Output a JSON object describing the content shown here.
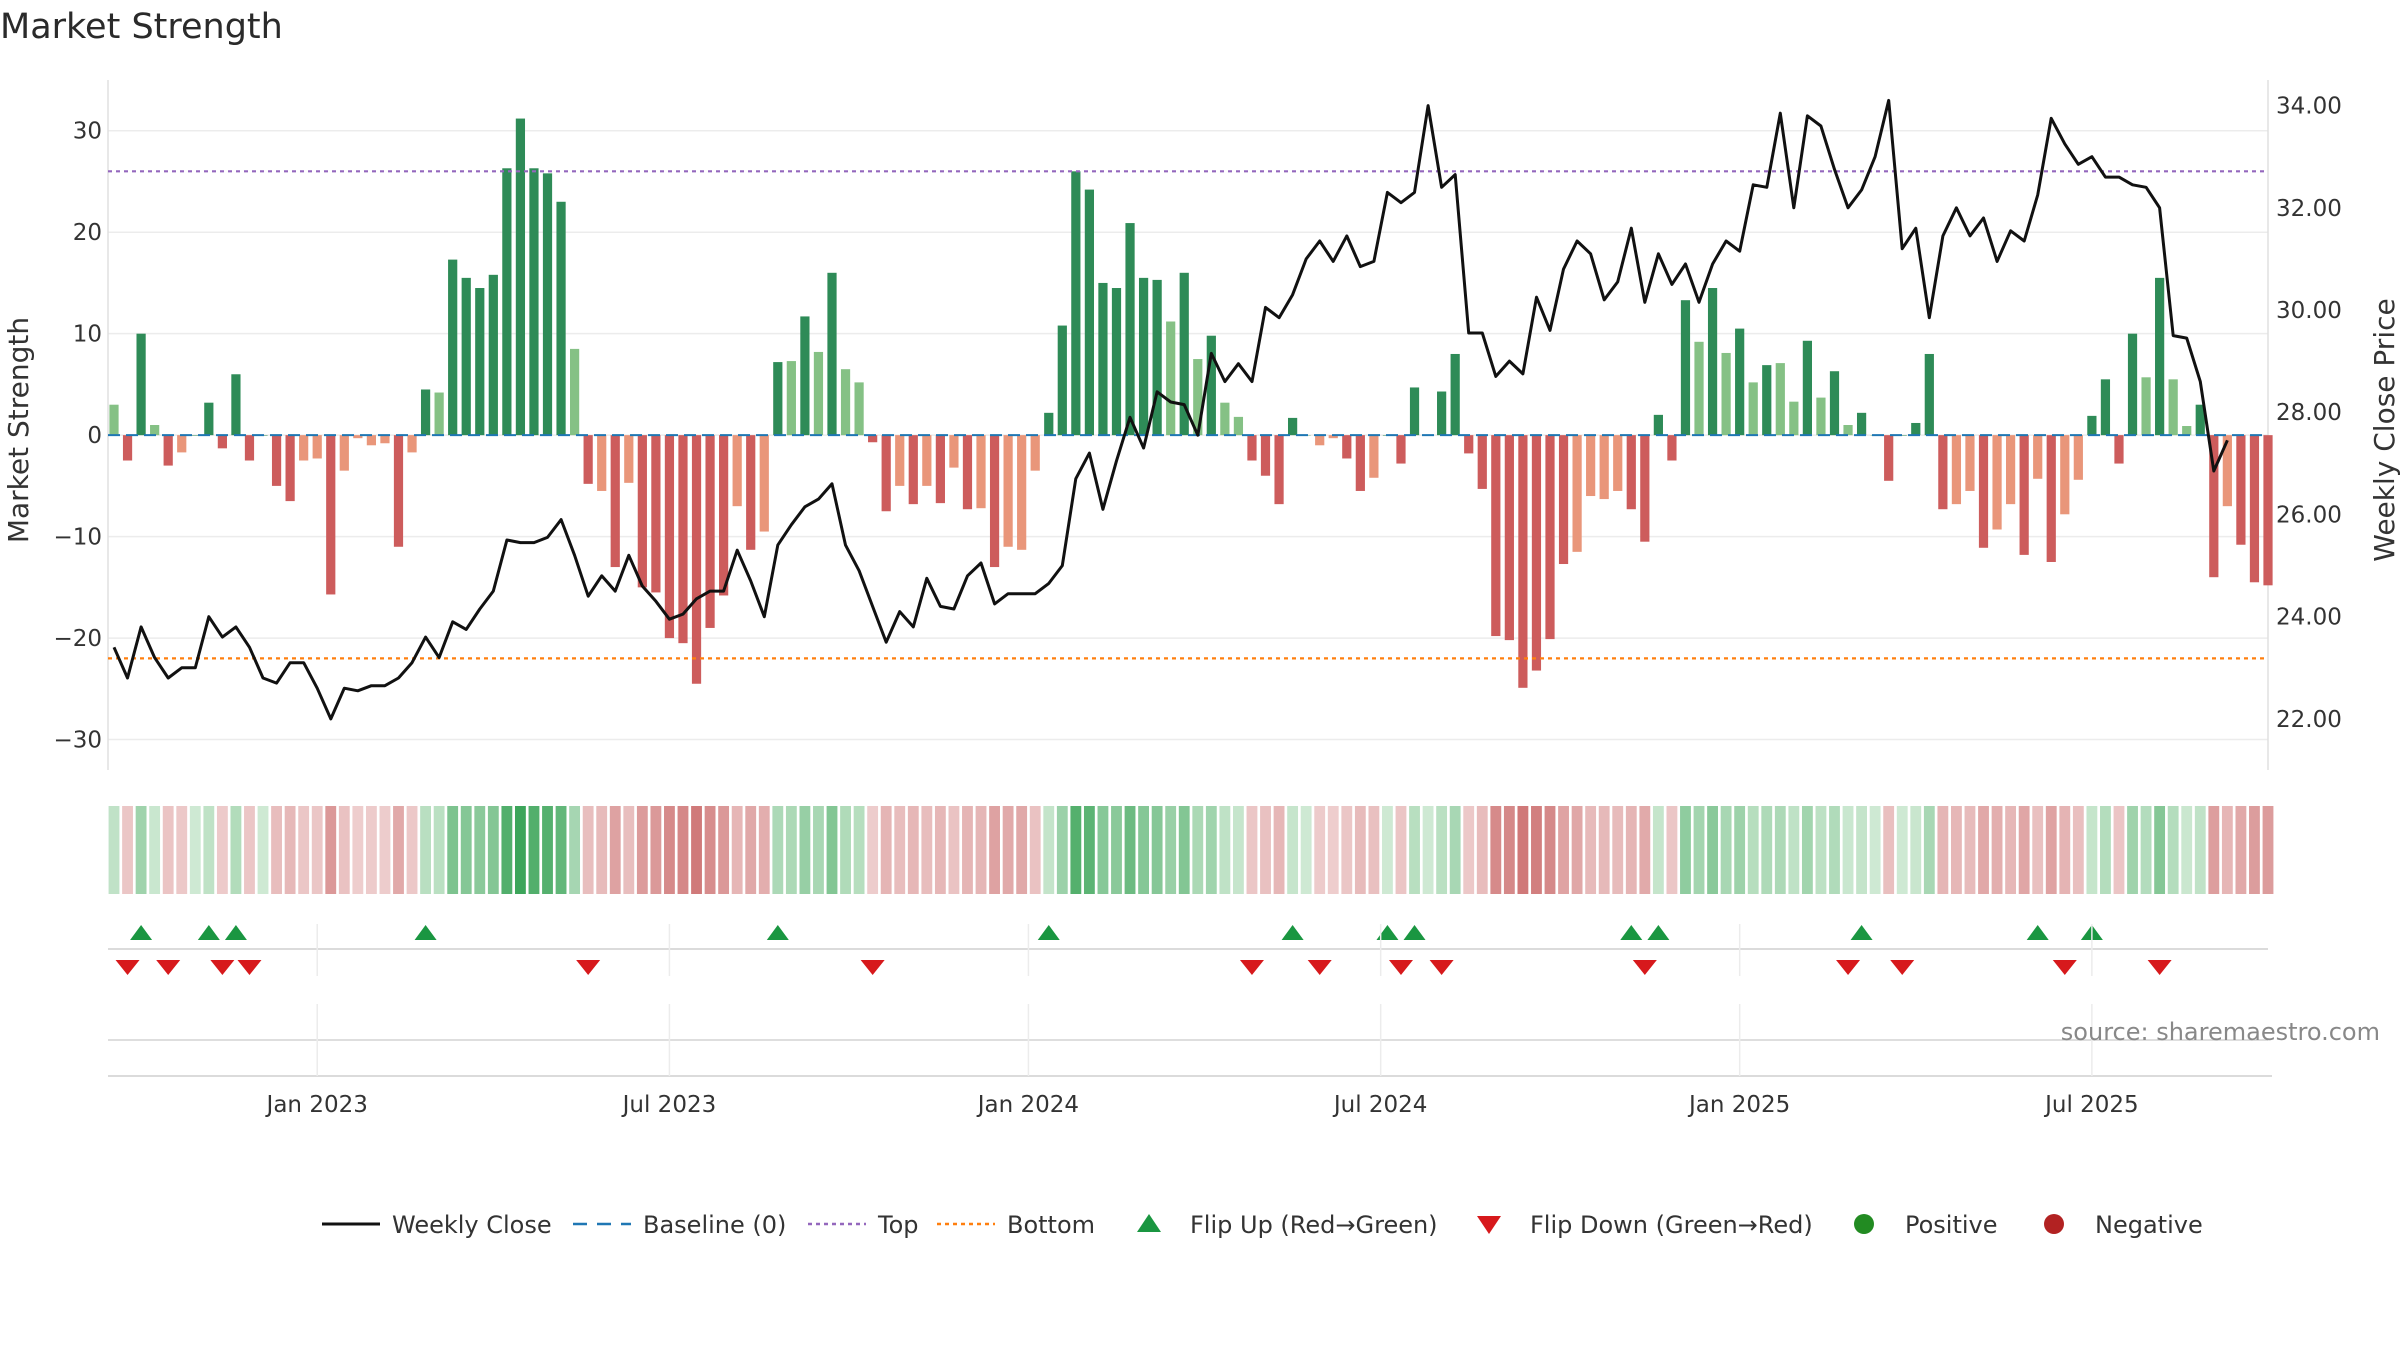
{
  "chart_data": {
    "type": "bar+line",
    "title": "Market Strength",
    "ylabel_left": "Market Strength",
    "ylabel_right": "Weekly Close Price",
    "ylim_left": [
      -33,
      35
    ],
    "ylim_right": [
      21.0,
      34.5
    ],
    "left_ticks": [
      30,
      20,
      10,
      0,
      -10,
      -20,
      -30
    ],
    "left_tick_labels": [
      "30",
      "20",
      "10",
      "0",
      "−10",
      "−20",
      "−30"
    ],
    "right_ticks": [
      34,
      32,
      30,
      28,
      26,
      24,
      22
    ],
    "right_tick_labels": [
      "34.00",
      "32.00",
      "30.00",
      "28.00",
      "26.00",
      "24.00",
      "22.00"
    ],
    "top_level": 26,
    "bottom_level": -22,
    "baseline": 0,
    "x_ticks": [
      {
        "label": "Jan 2023",
        "week": 15
      },
      {
        "label": "Jul 2023",
        "week": 41
      },
      {
        "label": "Jan 2024",
        "week": 67.5
      },
      {
        "label": "Jul 2024",
        "week": 93.5
      },
      {
        "label": "Jan 2025",
        "week": 120
      },
      {
        "label": "Jul 2025",
        "week": 146
      }
    ],
    "strength": [
      3,
      -2.5,
      10,
      1,
      -3,
      -1.7,
      0,
      3.2,
      -1.3,
      6,
      -2.5,
      0,
      -5,
      -6.5,
      -2.5,
      -2.3,
      -15.7,
      -3.5,
      -0.3,
      -1,
      -0.8,
      -11,
      -1.7,
      4.5,
      4.2,
      17.3,
      15.5,
      14.5,
      15.8,
      26.3,
      31.2,
      26.3,
      25.8,
      23,
      8.5,
      -4.8,
      -5.5,
      -13,
      -4.7,
      -15,
      -15.5,
      -20,
      -20.5,
      -24.5,
      -19,
      -15.8,
      -7,
      -11.3,
      -9.5,
      7.2,
      7.3,
      11.7,
      8.2,
      16,
      6.5,
      5.2,
      -0.7,
      -7.5,
      -5,
      -6.8,
      -5,
      -6.7,
      -3.2,
      -7.3,
      -7.2,
      -13,
      -11,
      -11.3,
      -3.5,
      2.2,
      10.8,
      26,
      24.2,
      15,
      14.5,
      20.9,
      15.5,
      15.3,
      11.2,
      16,
      7.5,
      9.8,
      3.2,
      1.8,
      -2.5,
      -4,
      -6.8,
      1.7,
      0,
      -1,
      -0.3,
      -2.3,
      -5.5,
      -4.2,
      0,
      -2.8,
      4.7,
      0,
      4.3,
      8,
      -1.8,
      -5.3,
      -19.8,
      -20.2,
      -24.9,
      -23.2,
      -20.1,
      -12.7,
      -11.5,
      -6,
      -6.3,
      -5.5,
      -7.3,
      -10.5,
      2,
      -2.5,
      13.3,
      9.2,
      14.5,
      8.1,
      10.5,
      5.2,
      6.9,
      7.1,
      3.3,
      9.3,
      3.7,
      6.3,
      1,
      2.2,
      0,
      -4.5,
      0,
      1.2,
      8,
      -7.3,
      -6.8,
      -5.5,
      -11.1,
      -9.3,
      -6.8,
      -11.8,
      -4.3,
      -12.5,
      -7.8,
      -4.4,
      1.9,
      5.5,
      -2.8,
      10,
      5.7,
      15.5,
      5.5,
      0.9,
      3,
      -14,
      -7,
      -10.8,
      -14.5,
      -14.8
    ],
    "weekly_close": [
      23.4,
      22.8,
      23.8,
      23.2,
      22.8,
      23.0,
      23.0,
      24.0,
      23.6,
      23.8,
      23.4,
      22.8,
      22.7,
      23.1,
      23.1,
      22.6,
      22.0,
      22.6,
      22.55,
      22.65,
      22.65,
      22.8,
      23.1,
      23.6,
      23.2,
      23.9,
      23.75,
      24.15,
      24.5,
      25.5,
      25.45,
      25.45,
      25.55,
      25.9,
      25.2,
      24.4,
      24.8,
      24.5,
      25.2,
      24.6,
      24.3,
      23.95,
      24.05,
      24.35,
      24.5,
      24.5,
      25.3,
      24.7,
      24.0,
      25.4,
      25.8,
      26.15,
      26.3,
      26.6,
      25.4,
      24.9,
      24.2,
      23.5,
      24.1,
      23.8,
      24.75,
      24.2,
      24.15,
      24.8,
      25.05,
      24.25,
      24.45,
      24.45,
      24.45,
      24.65,
      25.0,
      26.7,
      27.2,
      26.1,
      27.05,
      27.9,
      27.3,
      28.4,
      28.2,
      28.15,
      27.55,
      29.15,
      28.6,
      28.95,
      28.6,
      30.05,
      29.85,
      30.3,
      31.0,
      31.35,
      30.95,
      31.45,
      30.85,
      30.95,
      32.3,
      32.1,
      32.3,
      34.0,
      32.4,
      32.65,
      29.55,
      29.55,
      28.7,
      29.0,
      28.75,
      30.25,
      29.6,
      30.8,
      31.35,
      31.1,
      30.2,
      30.55,
      31.6,
      30.15,
      31.1,
      30.5,
      30.9,
      30.15,
      30.9,
      31.35,
      31.15,
      32.45,
      32.4,
      33.85,
      32.0,
      33.8,
      33.6,
      32.75,
      32.0,
      32.35,
      33.0,
      34.1,
      31.2,
      31.6,
      29.85,
      31.45,
      32.0,
      31.45,
      31.8,
      30.95,
      31.55,
      31.35,
      32.25,
      33.75,
      33.25,
      32.85,
      33.0,
      32.6,
      32.6,
      32.45,
      32.4,
      32.0,
      29.5,
      29.45,
      28.6,
      26.85,
      27.45
    ],
    "heat_strip_values": [
      3,
      -2.5,
      10,
      1,
      -3,
      -1.7,
      0,
      3.2,
      -1.3,
      6,
      -2.5,
      0,
      -5,
      -6.5,
      -2.5,
      -2.3,
      -15.7,
      -3.5,
      -0.3,
      -1,
      -0.8,
      -11,
      -1.7,
      4.5,
      4.2,
      17.3,
      15.5,
      14.5,
      15.8,
      26.3,
      31.2,
      26.3,
      25.8,
      23,
      8.5,
      -4.8,
      -5.5,
      -13,
      -4.7,
      -15,
      -15.5,
      -20,
      -20.5,
      -24.5,
      -19,
      -15.8,
      -7,
      -11.3,
      -9.5,
      7.2,
      7.3,
      11.7,
      8.2,
      16,
      6.5,
      5.2,
      -0.7,
      -7.5,
      -5,
      -6.8,
      -5,
      -6.7,
      -3.2,
      -7.3,
      -7.2,
      -13,
      -11,
      -11.3,
      -3.5,
      2.2,
      10.8,
      26,
      24.2,
      15,
      14.5,
      20.9,
      15.5,
      15.3,
      11.2,
      16,
      7.5,
      9.8,
      3.2,
      1.8,
      -2.5,
      -4,
      -6.8,
      1.7,
      0,
      -1,
      -0.3,
      -2.3,
      -5.5,
      -4.2,
      0,
      -2.8,
      4.7,
      0,
      4.3,
      8,
      -1.8,
      -5.3,
      -19.8,
      -20.2,
      -24.9,
      -23.2,
      -20.1,
      -12.7,
      -11.5,
      -6,
      -6.3,
      -5.5,
      -7.3,
      -10.5,
      2,
      -2.5,
      13.3,
      9.2,
      14.5,
      8.1,
      10.5,
      5.2,
      6.9,
      7.1,
      3.3,
      9.3,
      3.7,
      6.3,
      1,
      2.2,
      0,
      -4.5,
      0,
      1.2,
      8,
      -7.3,
      -6.8,
      -5.5,
      -11.1,
      -9.3,
      -6.8,
      -11.8,
      -4.3,
      -12.5,
      -7.8,
      -4.4,
      1.9,
      5.5,
      -2.8,
      10,
      5.7,
      15.5,
      5.5,
      0.9,
      3,
      -14,
      -7,
      -10.8,
      -14.5,
      -14.8
    ],
    "flip_up_weeks": [
      2,
      7,
      9,
      23,
      49,
      69,
      87,
      94,
      96,
      112,
      114,
      129,
      142,
      146
    ],
    "flip_down_weeks": [
      1,
      4,
      8,
      10,
      35,
      56,
      84,
      89,
      95,
      98,
      113,
      128,
      132,
      144,
      151
    ],
    "colors": {
      "strong_pos": "#2e8b57",
      "weak_pos": "#85c185",
      "strong_neg": "#cd5c5c",
      "weak_neg": "#e9967a",
      "line": "#111111",
      "baseline": "#1f77b4",
      "top": "#9467bd",
      "bottom": "#ff7f0e",
      "flip_up": "#1a9641",
      "flip_down": "#d7191c",
      "positive": "#228B22",
      "negative": "#B22222"
    },
    "legend": [
      {
        "label": "Weekly Close",
        "kind": "line"
      },
      {
        "label": "Baseline (0)",
        "kind": "baseline"
      },
      {
        "label": "Top",
        "kind": "top"
      },
      {
        "label": "Bottom",
        "kind": "bottom"
      },
      {
        "label": "Flip Up (Red→Green)",
        "kind": "flipup"
      },
      {
        "label": "Flip Down (Green→Red)",
        "kind": "flipdown"
      },
      {
        "label": "Positive",
        "kind": "pos"
      },
      {
        "label": "Negative",
        "kind": "neg"
      }
    ]
  },
  "source_note": "source: sharemaestro.com"
}
